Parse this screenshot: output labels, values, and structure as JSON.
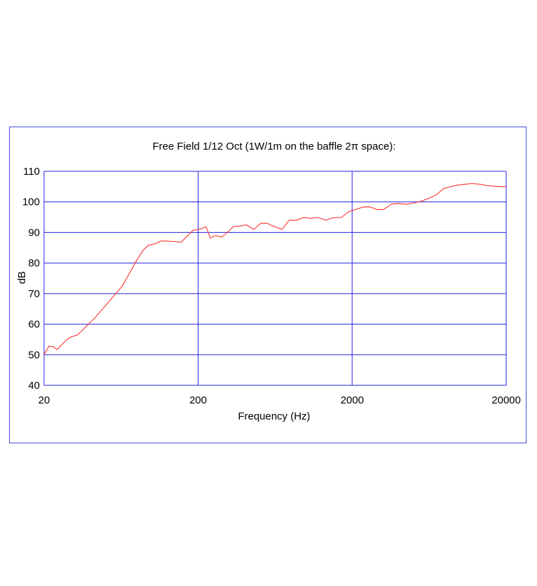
{
  "chart_data": {
    "type": "line",
    "title": "Free Field 1/12 Oct (1W/1m on the baffle 2π space):",
    "xlabel": "Frequency (Hz)",
    "ylabel": "dB",
    "x_scale": "log",
    "xlim": [
      20,
      20000
    ],
    "ylim": [
      40,
      110
    ],
    "x_ticks": [
      20,
      200,
      2000,
      20000
    ],
    "x_tick_labels": [
      "20",
      "200",
      "2000",
      "20000"
    ],
    "y_ticks": [
      40,
      50,
      60,
      70,
      80,
      90,
      100,
      110
    ],
    "y_tick_labels": [
      "40",
      "50",
      "60",
      "70",
      "80",
      "90",
      "100",
      "110"
    ],
    "grid": true,
    "grid_color": "#2020e0",
    "line_color": "#ff3030",
    "series": [
      {
        "values_x": [
          20,
          21.5,
          23,
          24.3,
          26,
          28,
          30,
          33,
          36,
          40,
          43,
          48,
          52,
          58,
          64,
          72,
          80,
          88,
          95,
          105,
          115,
          125,
          140,
          155,
          170,
          185,
          195,
          210,
          225,
          240,
          260,
          285,
          310,
          340,
          370,
          410,
          460,
          510,
          560,
          620,
          700,
          780,
          870,
          970,
          1080,
          1200,
          1350,
          1500,
          1700,
          1900,
          2100,
          2350,
          2600,
          2900,
          3200,
          3600,
          4000,
          4500,
          5000,
          5600,
          6300,
          7000,
          7800,
          8700,
          9700,
          10800,
          12000,
          13500,
          15000,
          17000,
          19000,
          20000
        ],
        "values_y": [
          50.0,
          52.8,
          52.6,
          51.7,
          53.2,
          54.9,
          55.8,
          56.5,
          58.3,
          60.7,
          62.2,
          65.0,
          67.0,
          69.8,
          72.3,
          76.8,
          81.0,
          84.2,
          85.8,
          86.3,
          87.2,
          87.2,
          87.0,
          86.8,
          88.8,
          90.7,
          90.9,
          91.2,
          91.9,
          88.2,
          89.0,
          88.5,
          90.0,
          92.0,
          92.0,
          92.5,
          91.0,
          93.0,
          93.0,
          92.0,
          91.0,
          94.0,
          94.0,
          94.9,
          94.6,
          94.9,
          94.0,
          94.8,
          94.9,
          96.8,
          97.5,
          98.3,
          98.4,
          97.5,
          97.5,
          99.3,
          99.5,
          99.2,
          99.6,
          100.2,
          101.2,
          102.2,
          104.3,
          105.0,
          105.5,
          105.8,
          106.0,
          105.8,
          105.3,
          105.1,
          105.0,
          105.0
        ]
      }
    ]
  }
}
